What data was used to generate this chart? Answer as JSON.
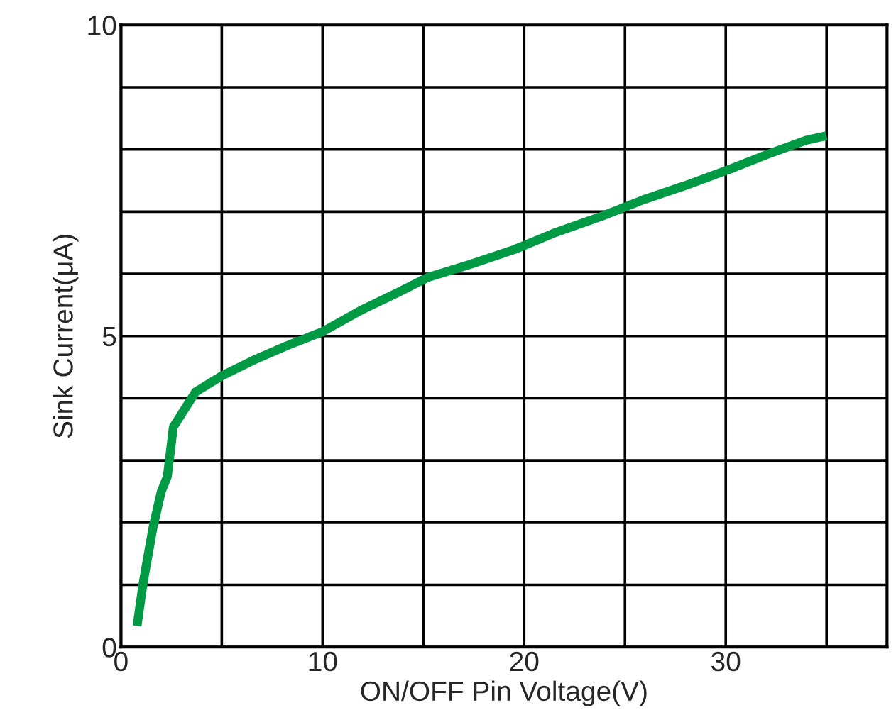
{
  "chart_data": {
    "type": "line",
    "xlabel": "ON/OFF Pin Voltage(V)",
    "ylabel": "Sink Current(μA)",
    "xlim": [
      0,
      38
    ],
    "ylim": [
      0,
      10
    ],
    "xticks": [
      0,
      {
        "value": 5,
        "label": null
      },
      10,
      {
        "value": 15,
        "label": null
      },
      20,
      {
        "value": 25,
        "label": null
      },
      30,
      {
        "value": 35,
        "label": null
      }
    ],
    "yticks": [
      0,
      {
        "value": 1,
        "label": null
      },
      {
        "value": 2,
        "label": null
      },
      {
        "value": 3,
        "label": null
      },
      {
        "value": 4,
        "label": null
      },
      5,
      {
        "value": 6,
        "label": null
      },
      {
        "value": 7,
        "label": null
      },
      {
        "value": 8,
        "label": null
      },
      {
        "value": 9,
        "label": null
      },
      10
    ],
    "grid": true,
    "marker": "none",
    "line_style": "solid",
    "series": [
      {
        "color": "#009a44",
        "x": [
          0.8,
          1.1,
          1.6,
          2.0,
          2.3,
          2.6,
          3.7,
          5,
          6.7,
          8.2,
          10,
          12,
          13.8,
          15.2,
          17.4,
          19.5,
          21.6,
          23.8,
          25.9,
          28,
          30.1,
          32.3,
          34,
          35
        ],
        "values": [
          0.34,
          1.03,
          1.94,
          2.5,
          2.74,
          3.54,
          4.1,
          4.36,
          4.63,
          4.84,
          5.07,
          5.43,
          5.71,
          5.94,
          6.16,
          6.39,
          6.67,
          6.92,
          7.19,
          7.42,
          7.67,
          7.95,
          8.15,
          8.22
        ]
      }
    ]
  }
}
